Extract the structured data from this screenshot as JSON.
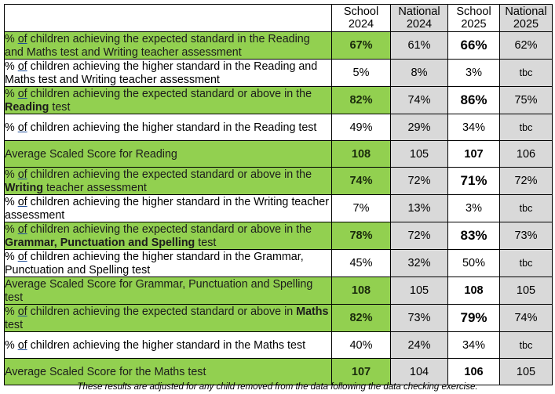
{
  "table": {
    "headers": {
      "label": "",
      "school_2024": [
        "School",
        "2024"
      ],
      "national_2024": [
        "National",
        "2024"
      ],
      "school_2025": [
        "School",
        "2025"
      ],
      "national_2025": [
        "National",
        "2025"
      ]
    },
    "rows": [
      {
        "label_parts": [
          {
            "text": "% ",
            "style": "bold"
          },
          {
            "text": "of",
            "style": "bold-underline"
          },
          {
            "text": " children achieving the expected standard in the Reading and Maths test and Writing teacher assessment",
            "style": "bold"
          }
        ],
        "label": "% of children achieving the expected standard in the Reading and Maths test and Writing teacher assessment",
        "highlight": "green",
        "school_2024": "67%",
        "national_2024": "61%",
        "school_2025": "66%",
        "national_2025": "62%"
      },
      {
        "label": "% of children achieving the higher standard in the Reading and Maths test and Writing teacher assessment",
        "highlight": "white",
        "school_2024": "5%",
        "national_2024": "8%",
        "school_2025": "3%",
        "national_2025": "tbc"
      },
      {
        "label": "% of children achieving the expected standard or above in the Reading test",
        "bold_word": "Reading",
        "highlight": "green",
        "school_2024": "82%",
        "national_2024": "74%",
        "school_2025": "86%",
        "national_2025": "75%"
      },
      {
        "label": "% of children achieving the higher standard in the Reading test",
        "highlight": "white",
        "school_2024": "49%",
        "national_2024": "29%",
        "school_2025": "34%",
        "national_2025": "tbc"
      },
      {
        "label": "Average Scaled Score for Reading",
        "highlight": "green",
        "school_2024": "108",
        "national_2024": "105",
        "school_2025": "107",
        "national_2025": "106"
      },
      {
        "label": "% of children achieving the expected standard or above in the Writing teacher assessment",
        "bold_word": "Writing",
        "highlight": "green",
        "school_2024": "74%",
        "national_2024": "72%",
        "school_2025": "71%",
        "national_2025": "72%"
      },
      {
        "label": "% of children achieving the higher standard in the Writing teacher assessment",
        "highlight": "white",
        "school_2024": "7%",
        "national_2024": "13%",
        "school_2025": "3%",
        "national_2025": "tbc"
      },
      {
        "label": "% of children achieving the expected standard or above in the Grammar, Punctuation and Spelling test",
        "bold_word": "Grammar, Punctuation and Spelling",
        "highlight": "green",
        "school_2024": "78%",
        "national_2024": "72%",
        "school_2025": "83%",
        "national_2025": "73%"
      },
      {
        "label": "% of children achieving the higher standard in the Grammar, Punctuation and Spelling test",
        "highlight": "white",
        "school_2024": "45%",
        "national_2024": "32%",
        "school_2025": "50%",
        "national_2025": "tbc"
      },
      {
        "label": "Average Scaled Score for Grammar, Punctuation and Spelling test",
        "highlight": "green",
        "school_2024": "108",
        "national_2024": "105",
        "school_2025": "108",
        "national_2025": "105"
      },
      {
        "label": "% of children achieving the expected standard or above in Maths test",
        "bold_word": "Maths",
        "highlight": "green",
        "school_2024": "82%",
        "national_2024": "73%",
        "school_2025": "79%",
        "national_2025": "74%"
      },
      {
        "label": "% of children achieving the higher standard in the Maths test",
        "highlight": "white",
        "school_2024": "40%",
        "national_2024": "24%",
        "school_2025": "34%",
        "national_2025": "tbc"
      },
      {
        "label": "Average Scaled Score for the Maths test",
        "highlight": "green",
        "school_2024": "107",
        "national_2024": "104",
        "school_2025": "106",
        "national_2025": "105"
      }
    ],
    "label_fragments": {
      "pct": "% ",
      "of": "of",
      "r1_rest": " children achieving the expected standard in the Reading and Maths test and Writing teacher assessment",
      "r2_rest": " children achieving the higher standard in the Reading and Maths test and Writing teacher assessment",
      "r3_a": " children achieving the expected standard or above in the ",
      "r3_b": "Reading",
      "r3_c": " test",
      "r4_rest": " children achieving the higher standard in the Reading test",
      "r6_a": " children achieving the expected standard or above in the ",
      "r6_b": "Writing",
      "r6_c": " teacher assessment",
      "r7_rest": " children achieving the higher standard in the Writing teacher assessment",
      "r8_a": " children achieving the expected standard or above in the  ",
      "r8_b": "Grammar, Punctuation and Spelling",
      "r8_c": " test",
      "r9_rest": " children achieving the higher standard in the Grammar, Punctuation and Spelling test",
      "r11_a": " children achieving the expected standard or above in ",
      "r11_b": "Maths",
      "r11_c": " test",
      "r12_rest": " children achieving the higher standard in the Maths test"
    },
    "colors": {
      "highlight_green": "#92d050",
      "national_grey": "#d9d9d9",
      "white": "#ffffff",
      "border": "#000000",
      "of_underline": "#1f4e99"
    }
  },
  "footnote": "These results are adjusted for any child removed from the data following the data checking exercise."
}
